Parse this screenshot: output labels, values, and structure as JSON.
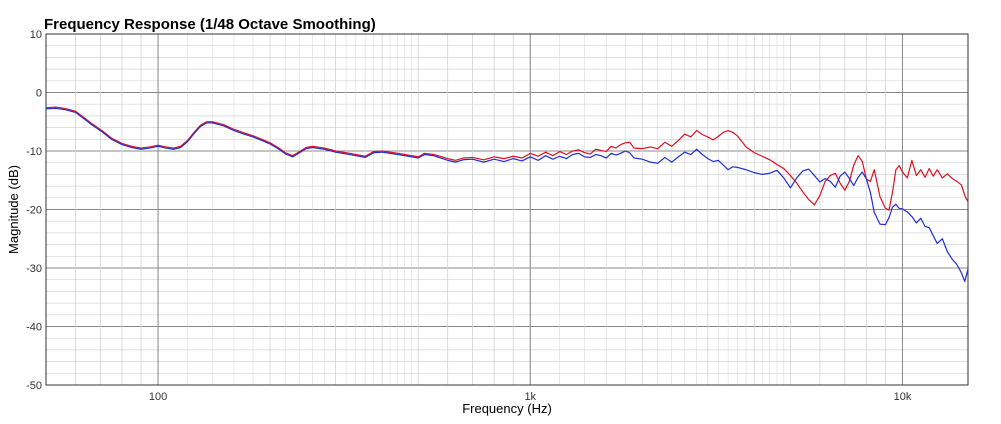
{
  "chart_data": {
    "type": "line",
    "title": "Frequency Response (1/48 Octave Smoothing)",
    "xlabel": "Frequency (Hz)",
    "ylabel": "Magnitude (dB)",
    "xscale": "log",
    "xlim": [
      50,
      15000
    ],
    "ylim": [
      -50,
      10
    ],
    "grid": true,
    "legend": "none",
    "x_tick_labels": [
      {
        "value": 100,
        "label": "100"
      },
      {
        "value": 1000,
        "label": "1k"
      },
      {
        "value": 10000,
        "label": "10k"
      }
    ],
    "y_ticks": [
      10,
      0,
      -10,
      -20,
      -30,
      -40,
      -50
    ],
    "colors": {
      "red_series": "#e01020",
      "blue_series": "#2030d0",
      "grid_major": "#888888",
      "grid_minor": "#d4d4d4"
    },
    "series": [
      {
        "color": "#e01020",
        "points": [
          [
            50,
            -2.6
          ],
          [
            53,
            -2.5
          ],
          [
            56,
            -2.7
          ],
          [
            60,
            -3.2
          ],
          [
            63,
            -4.2
          ],
          [
            67,
            -5.5
          ],
          [
            71,
            -6.6
          ],
          [
            75,
            -7.8
          ],
          [
            80,
            -8.7
          ],
          [
            85,
            -9.2
          ],
          [
            90,
            -9.5
          ],
          [
            95,
            -9.3
          ],
          [
            100,
            -9.0
          ],
          [
            105,
            -9.3
          ],
          [
            110,
            -9.5
          ],
          [
            115,
            -9.2
          ],
          [
            120,
            -8.2
          ],
          [
            125,
            -6.8
          ],
          [
            130,
            -5.6
          ],
          [
            135,
            -5.0
          ],
          [
            140,
            -5.0
          ],
          [
            150,
            -5.5
          ],
          [
            160,
            -6.3
          ],
          [
            170,
            -6.9
          ],
          [
            180,
            -7.4
          ],
          [
            190,
            -8.0
          ],
          [
            200,
            -8.6
          ],
          [
            210,
            -9.4
          ],
          [
            220,
            -10.3
          ],
          [
            230,
            -10.8
          ],
          [
            240,
            -10.1
          ],
          [
            250,
            -9.4
          ],
          [
            260,
            -9.2
          ],
          [
            280,
            -9.5
          ],
          [
            300,
            -10.0
          ],
          [
            320,
            -10.3
          ],
          [
            340,
            -10.6
          ],
          [
            360,
            -10.9
          ],
          [
            380,
            -10.1
          ],
          [
            400,
            -10.0
          ],
          [
            430,
            -10.3
          ],
          [
            460,
            -10.6
          ],
          [
            490,
            -10.9
          ],
          [
            500,
            -11.0
          ],
          [
            520,
            -10.4
          ],
          [
            550,
            -10.6
          ],
          [
            600,
            -11.3
          ],
          [
            630,
            -11.6
          ],
          [
            660,
            -11.2
          ],
          [
            700,
            -11.1
          ],
          [
            750,
            -11.5
          ],
          [
            800,
            -11.0
          ],
          [
            850,
            -11.3
          ],
          [
            900,
            -10.9
          ],
          [
            950,
            -11.2
          ],
          [
            1000,
            -10.4
          ],
          [
            1050,
            -10.9
          ],
          [
            1100,
            -10.2
          ],
          [
            1150,
            -10.8
          ],
          [
            1200,
            -10.1
          ],
          [
            1250,
            -10.6
          ],
          [
            1300,
            -10.0
          ],
          [
            1350,
            -9.8
          ],
          [
            1400,
            -10.3
          ],
          [
            1450,
            -10.5
          ],
          [
            1500,
            -9.7
          ],
          [
            1550,
            -9.9
          ],
          [
            1600,
            -10.1
          ],
          [
            1650,
            -9.2
          ],
          [
            1700,
            -9.5
          ],
          [
            1750,
            -8.9
          ],
          [
            1800,
            -8.6
          ],
          [
            1850,
            -8.5
          ],
          [
            1900,
            -9.5
          ],
          [
            2000,
            -9.6
          ],
          [
            2100,
            -9.3
          ],
          [
            2200,
            -9.6
          ],
          [
            2300,
            -8.5
          ],
          [
            2400,
            -9.2
          ],
          [
            2500,
            -8.2
          ],
          [
            2600,
            -7.1
          ],
          [
            2700,
            -7.6
          ],
          [
            2800,
            -6.5
          ],
          [
            2900,
            -7.2
          ],
          [
            3000,
            -7.6
          ],
          [
            3100,
            -8.1
          ],
          [
            3200,
            -7.5
          ],
          [
            3300,
            -6.8
          ],
          [
            3400,
            -6.5
          ],
          [
            3500,
            -6.8
          ],
          [
            3600,
            -7.4
          ],
          [
            3800,
            -9.3
          ],
          [
            4000,
            -10.3
          ],
          [
            4200,
            -10.9
          ],
          [
            4400,
            -11.5
          ],
          [
            4600,
            -12.3
          ],
          [
            4800,
            -13.0
          ],
          [
            5000,
            -14.2
          ],
          [
            5200,
            -15.5
          ],
          [
            5400,
            -17.0
          ],
          [
            5600,
            -18.3
          ],
          [
            5800,
            -19.2
          ],
          [
            6000,
            -17.6
          ],
          [
            6200,
            -15.2
          ],
          [
            6400,
            -14.2
          ],
          [
            6600,
            -13.8
          ],
          [
            6800,
            -15.5
          ],
          [
            7000,
            -16.7
          ],
          [
            7200,
            -15.2
          ],
          [
            7400,
            -12.4
          ],
          [
            7600,
            -10.8
          ],
          [
            7800,
            -11.8
          ],
          [
            8000,
            -14.8
          ],
          [
            8200,
            -15.2
          ],
          [
            8400,
            -13.2
          ],
          [
            8700,
            -17.8
          ],
          [
            9000,
            -19.8
          ],
          [
            9200,
            -20.1
          ],
          [
            9400,
            -17.1
          ],
          [
            9600,
            -13.2
          ],
          [
            9800,
            -12.5
          ],
          [
            10000,
            -13.6
          ],
          [
            10300,
            -14.6
          ],
          [
            10600,
            -11.6
          ],
          [
            10900,
            -14.2
          ],
          [
            11200,
            -13.2
          ],
          [
            11500,
            -14.5
          ],
          [
            11800,
            -13.0
          ],
          [
            12100,
            -14.3
          ],
          [
            12400,
            -13.2
          ],
          [
            12800,
            -14.6
          ],
          [
            13200,
            -13.9
          ],
          [
            13600,
            -14.7
          ],
          [
            14000,
            -15.2
          ],
          [
            14400,
            -15.8
          ],
          [
            14700,
            -17.6
          ],
          [
            15000,
            -18.7
          ]
        ]
      },
      {
        "color": "#2030d0",
        "points": [
          [
            50,
            -2.8
          ],
          [
            53,
            -2.7
          ],
          [
            56,
            -2.9
          ],
          [
            60,
            -3.4
          ],
          [
            63,
            -4.4
          ],
          [
            67,
            -5.7
          ],
          [
            71,
            -6.8
          ],
          [
            75,
            -8.0
          ],
          [
            80,
            -8.9
          ],
          [
            85,
            -9.4
          ],
          [
            90,
            -9.7
          ],
          [
            95,
            -9.5
          ],
          [
            100,
            -9.2
          ],
          [
            105,
            -9.5
          ],
          [
            110,
            -9.7
          ],
          [
            115,
            -9.4
          ],
          [
            120,
            -8.4
          ],
          [
            125,
            -7.0
          ],
          [
            130,
            -5.8
          ],
          [
            135,
            -5.2
          ],
          [
            140,
            -5.2
          ],
          [
            150,
            -5.7
          ],
          [
            160,
            -6.5
          ],
          [
            170,
            -7.1
          ],
          [
            180,
            -7.6
          ],
          [
            190,
            -8.2
          ],
          [
            200,
            -8.8
          ],
          [
            210,
            -9.6
          ],
          [
            220,
            -10.5
          ],
          [
            230,
            -11.0
          ],
          [
            240,
            -10.3
          ],
          [
            250,
            -9.6
          ],
          [
            260,
            -9.4
          ],
          [
            280,
            -9.7
          ],
          [
            300,
            -10.2
          ],
          [
            320,
            -10.5
          ],
          [
            340,
            -10.8
          ],
          [
            360,
            -11.1
          ],
          [
            380,
            -10.3
          ],
          [
            400,
            -10.2
          ],
          [
            430,
            -10.5
          ],
          [
            460,
            -10.8
          ],
          [
            490,
            -11.1
          ],
          [
            500,
            -11.2
          ],
          [
            520,
            -10.6
          ],
          [
            550,
            -10.8
          ],
          [
            600,
            -11.6
          ],
          [
            630,
            -11.9
          ],
          [
            660,
            -11.5
          ],
          [
            700,
            -11.4
          ],
          [
            750,
            -11.9
          ],
          [
            800,
            -11.4
          ],
          [
            850,
            -11.8
          ],
          [
            900,
            -11.3
          ],
          [
            950,
            -11.7
          ],
          [
            1000,
            -11.0
          ],
          [
            1050,
            -11.6
          ],
          [
            1100,
            -10.8
          ],
          [
            1150,
            -11.4
          ],
          [
            1200,
            -10.9
          ],
          [
            1250,
            -11.3
          ],
          [
            1300,
            -10.6
          ],
          [
            1350,
            -10.4
          ],
          [
            1400,
            -11.0
          ],
          [
            1450,
            -11.1
          ],
          [
            1500,
            -10.6
          ],
          [
            1550,
            -10.8
          ],
          [
            1600,
            -11.2
          ],
          [
            1650,
            -10.4
          ],
          [
            1700,
            -10.7
          ],
          [
            1750,
            -10.4
          ],
          [
            1800,
            -10.0
          ],
          [
            1850,
            -10.3
          ],
          [
            1900,
            -11.2
          ],
          [
            2000,
            -11.4
          ],
          [
            2100,
            -11.9
          ],
          [
            2200,
            -12.1
          ],
          [
            2300,
            -11.1
          ],
          [
            2400,
            -11.9
          ],
          [
            2500,
            -11.0
          ],
          [
            2600,
            -10.2
          ],
          [
            2700,
            -10.6
          ],
          [
            2800,
            -9.7
          ],
          [
            2900,
            -10.6
          ],
          [
            3000,
            -11.3
          ],
          [
            3100,
            -11.8
          ],
          [
            3200,
            -11.6
          ],
          [
            3300,
            -12.4
          ],
          [
            3400,
            -13.2
          ],
          [
            3500,
            -12.7
          ],
          [
            3600,
            -12.8
          ],
          [
            3800,
            -13.2
          ],
          [
            4000,
            -13.7
          ],
          [
            4200,
            -14.0
          ],
          [
            4400,
            -13.8
          ],
          [
            4600,
            -13.3
          ],
          [
            4800,
            -14.6
          ],
          [
            5000,
            -16.3
          ],
          [
            5200,
            -14.6
          ],
          [
            5400,
            -13.4
          ],
          [
            5600,
            -13.1
          ],
          [
            5800,
            -14.2
          ],
          [
            6000,
            -15.3
          ],
          [
            6200,
            -14.7
          ],
          [
            6400,
            -15.2
          ],
          [
            6600,
            -16.2
          ],
          [
            6800,
            -14.3
          ],
          [
            7000,
            -13.6
          ],
          [
            7200,
            -14.7
          ],
          [
            7400,
            -15.9
          ],
          [
            7600,
            -14.5
          ],
          [
            7800,
            -13.6
          ],
          [
            8000,
            -14.8
          ],
          [
            8200,
            -17.1
          ],
          [
            8400,
            -20.5
          ],
          [
            8700,
            -22.5
          ],
          [
            9000,
            -22.6
          ],
          [
            9200,
            -21.4
          ],
          [
            9400,
            -19.6
          ],
          [
            9600,
            -19.1
          ],
          [
            9800,
            -19.8
          ],
          [
            10000,
            -19.9
          ],
          [
            10300,
            -20.4
          ],
          [
            10600,
            -21.2
          ],
          [
            10900,
            -22.3
          ],
          [
            11200,
            -21.5
          ],
          [
            11500,
            -22.9
          ],
          [
            11800,
            -23.1
          ],
          [
            12100,
            -24.5
          ],
          [
            12400,
            -25.8
          ],
          [
            12800,
            -25.0
          ],
          [
            13200,
            -27.2
          ],
          [
            13600,
            -28.5
          ],
          [
            14000,
            -29.4
          ],
          [
            14400,
            -30.8
          ],
          [
            14700,
            -32.3
          ],
          [
            15000,
            -30.2
          ]
        ]
      }
    ]
  }
}
